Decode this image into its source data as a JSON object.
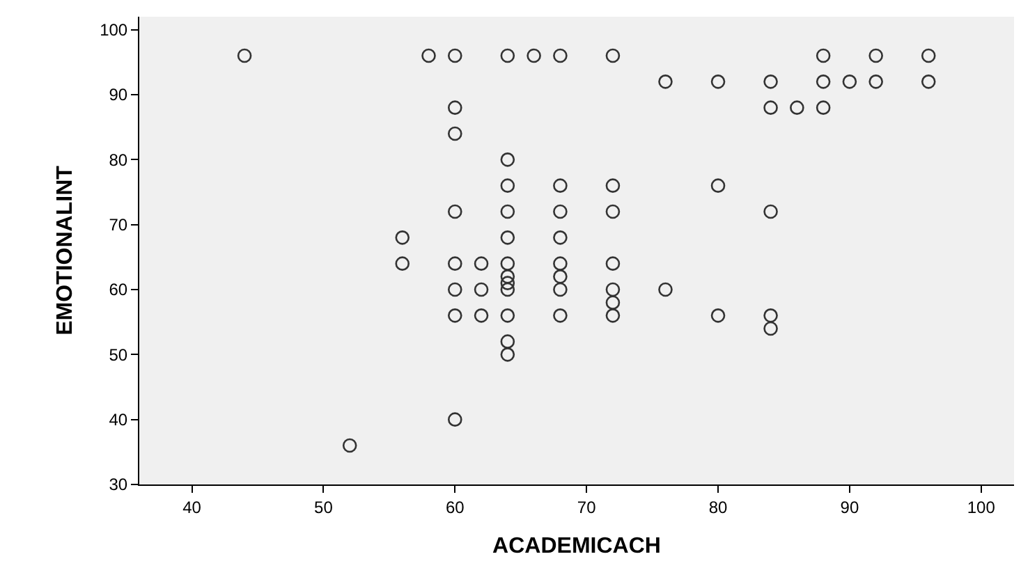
{
  "chart_data": {
    "type": "scatter",
    "xlabel": "ACADEMICACH",
    "ylabel": "EMOTIONALINT",
    "x": [
      44,
      52,
      56,
      56,
      58,
      60,
      60,
      60,
      60,
      60,
      60,
      60,
      60,
      62,
      62,
      62,
      64,
      64,
      64,
      64,
      64,
      64,
      64,
      64,
      64,
      64,
      64,
      64,
      66,
      68,
      68,
      68,
      68,
      68,
      68,
      68,
      68,
      72,
      72,
      72,
      72,
      72,
      72,
      72,
      76,
      76,
      80,
      80,
      80,
      84,
      84,
      84,
      84,
      84,
      86,
      88,
      88,
      88,
      90,
      92,
      92,
      96,
      96
    ],
    "series": [
      {
        "color": "#333333",
        "values": [
          96,
          36,
          68,
          64,
          96,
          96,
          88,
          84,
          72,
          64,
          60,
          56,
          40,
          64,
          60,
          56,
          96,
          80,
          76,
          72,
          68,
          64,
          62,
          61,
          60,
          56,
          52,
          50,
          96,
          96,
          76,
          72,
          68,
          64,
          62,
          60,
          56,
          96,
          76,
          72,
          64,
          60,
          58,
          56,
          92,
          60,
          92,
          76,
          56,
          92,
          88,
          72,
          56,
          54,
          88,
          96,
          92,
          88,
          92,
          96,
          92,
          96,
          92
        ]
      }
    ],
    "marker": "circle",
    "xlim": [
      36,
      102.5
    ],
    "ylim": [
      30,
      102
    ],
    "xticks": [
      40,
      50,
      60,
      70,
      80,
      90,
      100
    ],
    "yticks": [
      30,
      40,
      50,
      60,
      70,
      80,
      90,
      100
    ],
    "grid": false
  }
}
